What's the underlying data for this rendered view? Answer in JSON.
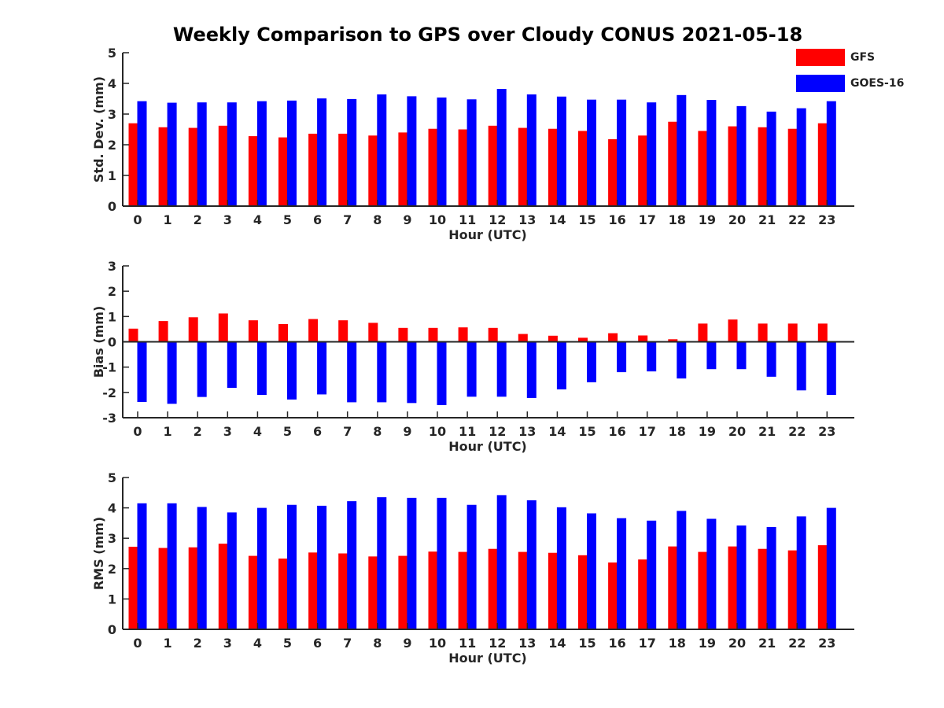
{
  "chart_title": "Weekly Comparison to GPS over Cloudy CONUS 2021-05-18",
  "colors": {
    "GFS": "#ff0000",
    "GOES-16": "#0000ff",
    "axis": "#262626"
  },
  "legend": [
    {
      "name": "GFS",
      "color": "#ff0000"
    },
    {
      "name": "GOES-16",
      "color": "#0000ff"
    }
  ],
  "chart_data": [
    {
      "type": "bar",
      "title": "Weekly Comparison to GPS over Cloudy CONUS 2021-05-18",
      "xlabel": "Hour (UTC)",
      "ylabel": "Std. Dev. (mm)",
      "ylim": [
        0,
        5
      ],
      "yticks": [
        0,
        1,
        2,
        3,
        4,
        5
      ],
      "legend_position": "top-right",
      "grid": false,
      "categories": [
        "0",
        "1",
        "2",
        "3",
        "4",
        "5",
        "6",
        "7",
        "8",
        "9",
        "10",
        "11",
        "12",
        "13",
        "14",
        "15",
        "16",
        "17",
        "18",
        "19",
        "20",
        "21",
        "22",
        "23"
      ],
      "series": [
        {
          "name": "GFS",
          "values": [
            2.7,
            2.57,
            2.55,
            2.62,
            2.28,
            2.24,
            2.36,
            2.36,
            2.3,
            2.4,
            2.52,
            2.5,
            2.62,
            2.55,
            2.52,
            2.45,
            2.18,
            2.3,
            2.75,
            2.45,
            2.6,
            2.57,
            2.52,
            2.7
          ]
        },
        {
          "name": "GOES-16",
          "values": [
            3.42,
            3.37,
            3.38,
            3.38,
            3.42,
            3.44,
            3.51,
            3.49,
            3.64,
            3.58,
            3.54,
            3.48,
            3.82,
            3.64,
            3.57,
            3.47,
            3.47,
            3.38,
            3.62,
            3.46,
            3.26,
            3.08,
            3.19,
            3.42
          ]
        }
      ]
    },
    {
      "type": "bar",
      "xlabel": "Hour (UTC)",
      "ylabel": "Bias (mm)",
      "ylim": [
        -3,
        3
      ],
      "yticks": [
        -3,
        -2,
        -1,
        0,
        1,
        2,
        3
      ],
      "grid": false,
      "categories": [
        "0",
        "1",
        "2",
        "3",
        "4",
        "5",
        "6",
        "7",
        "8",
        "9",
        "10",
        "11",
        "12",
        "13",
        "14",
        "15",
        "16",
        "17",
        "18",
        "19",
        "20",
        "21",
        "22",
        "23"
      ],
      "series": [
        {
          "name": "GFS",
          "values": [
            0.52,
            0.82,
            0.97,
            1.12,
            0.85,
            0.7,
            0.9,
            0.85,
            0.75,
            0.55,
            0.55,
            0.57,
            0.55,
            0.31,
            0.24,
            0.16,
            0.34,
            0.25,
            0.1,
            0.72,
            0.88,
            0.72,
            0.72,
            0.72
          ]
        },
        {
          "name": "GOES-16",
          "values": [
            -2.38,
            -2.45,
            -2.18,
            -1.82,
            -2.1,
            -2.28,
            -2.08,
            -2.39,
            -2.39,
            -2.42,
            -2.5,
            -2.17,
            -2.17,
            -2.22,
            -1.88,
            -1.6,
            -1.2,
            -1.17,
            -1.45,
            -1.08,
            -1.08,
            -1.38,
            -1.92,
            -2.1
          ]
        }
      ]
    },
    {
      "type": "bar",
      "xlabel": "Hour (UTC)",
      "ylabel": "RMS (mm)",
      "ylim": [
        0,
        5
      ],
      "yticks": [
        0,
        1,
        2,
        3,
        4,
        5
      ],
      "grid": false,
      "categories": [
        "0",
        "1",
        "2",
        "3",
        "4",
        "5",
        "6",
        "7",
        "8",
        "9",
        "10",
        "11",
        "12",
        "13",
        "14",
        "15",
        "16",
        "17",
        "18",
        "19",
        "20",
        "21",
        "22",
        "23"
      ],
      "series": [
        {
          "name": "GFS",
          "values": [
            2.72,
            2.68,
            2.7,
            2.82,
            2.42,
            2.33,
            2.53,
            2.5,
            2.4,
            2.42,
            2.56,
            2.55,
            2.65,
            2.55,
            2.52,
            2.44,
            2.2,
            2.3,
            2.73,
            2.55,
            2.73,
            2.65,
            2.6,
            2.77
          ]
        },
        {
          "name": "GOES-16",
          "values": [
            4.15,
            4.15,
            4.03,
            3.85,
            4.0,
            4.1,
            4.07,
            4.22,
            4.35,
            4.33,
            4.33,
            4.1,
            4.42,
            4.25,
            4.02,
            3.82,
            3.66,
            3.58,
            3.9,
            3.64,
            3.42,
            3.37,
            3.72,
            4.0
          ]
        }
      ]
    }
  ]
}
